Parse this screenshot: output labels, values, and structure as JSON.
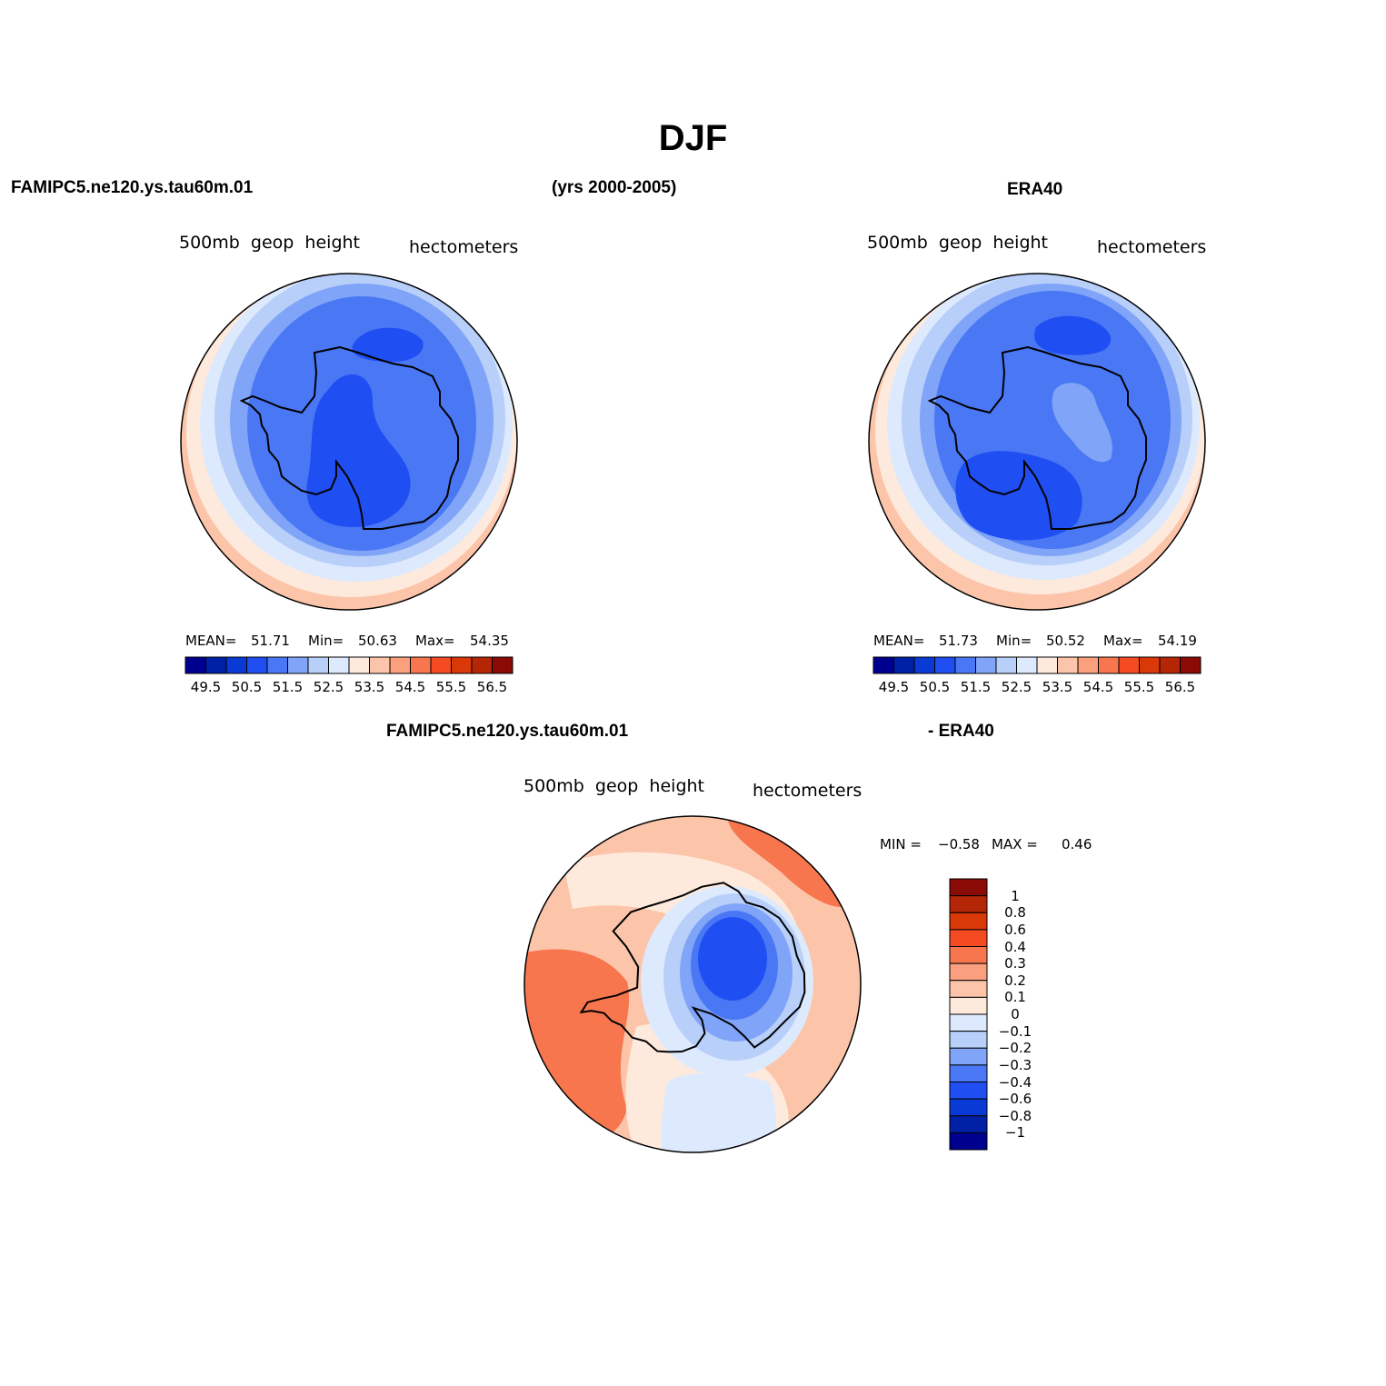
{
  "figure": {
    "title": "DJF",
    "case_name": "FAMIPC5.ne120.ys.tau60m.01",
    "years": "(yrs 2000-2005)",
    "reference": "ERA40",
    "diff_case_name": "FAMIPC5.ne120.ys.tau60m.01",
    "diff_reference": "- ERA40"
  },
  "panels": [
    {
      "id": "model",
      "variable": "500mb  geop  height",
      "units": "hectometers",
      "stats": {
        "mean_label": "MEAN=",
        "mean": "51.71",
        "min_label": "Min=",
        "min": "50.63",
        "max_label": "Max=",
        "max": "54.35"
      }
    },
    {
      "id": "obs",
      "variable": "500mb  geop  height",
      "units": "hectometers",
      "stats": {
        "mean_label": "MEAN=",
        "mean": "51.73",
        "min_label": "Min=",
        "min": "50.52",
        "max_label": "Max=",
        "max": "54.19"
      }
    },
    {
      "id": "diff",
      "variable": "500mb  geop  height",
      "units": "hectometers",
      "stats": {
        "min_label": "MIN =",
        "min": "−0.58",
        "max_label": "MAX =",
        "max": "0.46"
      }
    }
  ],
  "colorbar_main": {
    "colors": [
      "#00008f",
      "#0021a6",
      "#0a3ad6",
      "#1f4ff2",
      "#4a78f5",
      "#80a4f7",
      "#b8cffa",
      "#dde9fd",
      "#feeadc",
      "#fcc5aa",
      "#faa07e",
      "#f7764e",
      "#f44b22",
      "#d93808",
      "#b42606",
      "#8a0a06"
    ],
    "labels": [
      "49.5",
      "50.5",
      "51.5",
      "52.5",
      "53.5",
      "54.5",
      "55.5",
      "56.5"
    ]
  },
  "colorbar_diff": {
    "colors_top_to_bottom": [
      "#8a0a06",
      "#b42606",
      "#d93808",
      "#f44b22",
      "#f7764e",
      "#faa07e",
      "#fcc5aa",
      "#feeadc",
      "#dde9fd",
      "#b8cffa",
      "#80a4f7",
      "#4a78f5",
      "#1f4ff2",
      "#0a3ad6",
      "#0021a6",
      "#00008f"
    ],
    "labels": [
      "1",
      "0.8",
      "0.6",
      "0.4",
      "0.3",
      "0.2",
      "0.1",
      "0",
      "−0.1",
      "−0.2",
      "−0.3",
      "−0.4",
      "−0.6",
      "−0.8",
      "−1"
    ]
  },
  "fill_colors": {
    "model": [
      "#fcc5aa",
      "#feeadc",
      "#dde9fd",
      "#b8cffa",
      "#80a4f7",
      "#4a78f5",
      "#1f4ff2"
    ],
    "obs": [
      "#fcc5aa",
      "#feeadc",
      "#dde9fd",
      "#b8cffa",
      "#80a4f7",
      "#4a78f5",
      "#1f4ff2"
    ],
    "diff_warm": [
      "#f44b22",
      "#f7764e",
      "#faa07e",
      "#fcc5aa",
      "#feeadc"
    ],
    "diff_cool": [
      "#dde9fd",
      "#b8cffa",
      "#80a4f7",
      "#4a78f5",
      "#1f4ff2"
    ]
  }
}
